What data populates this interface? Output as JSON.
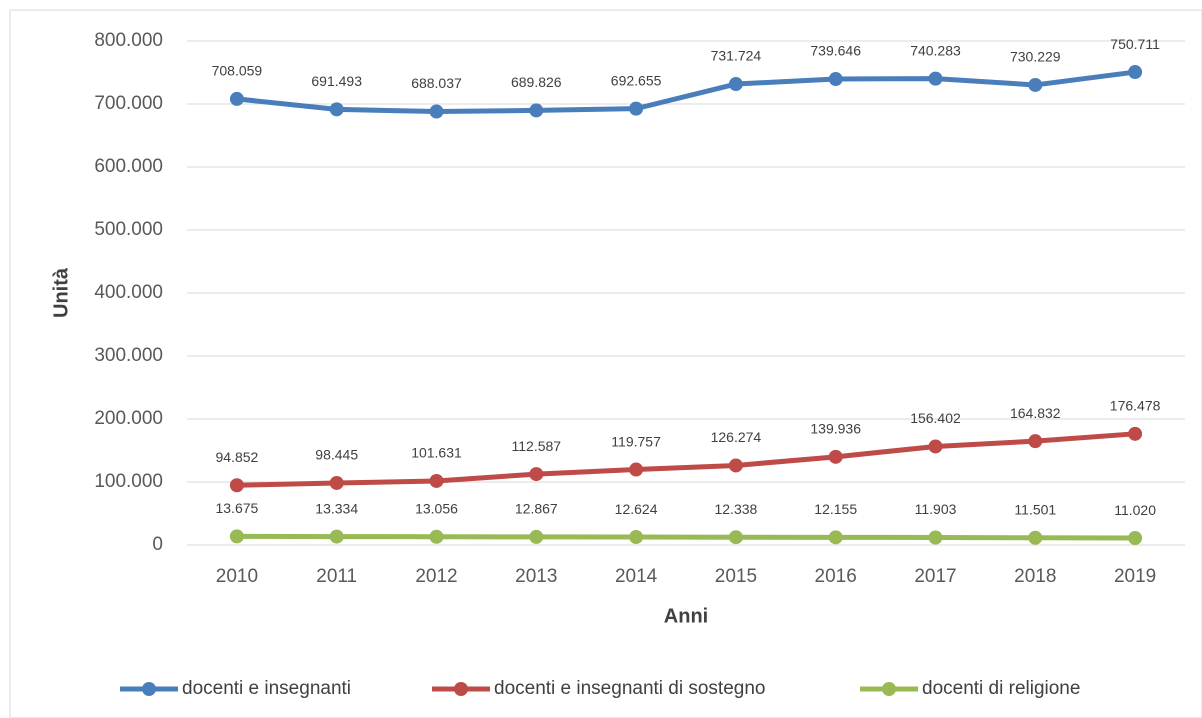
{
  "chart_data": {
    "type": "line",
    "x_label": "Anni",
    "y_label": "Unità",
    "categories": [
      "2010",
      "2011",
      "2012",
      "2013",
      "2014",
      "2015",
      "2016",
      "2017",
      "2018",
      "2019"
    ],
    "series": [
      {
        "name": "docenti e insegnanti",
        "color": "#4a7ebb",
        "values": [
          708059,
          691493,
          688037,
          689826,
          692655,
          731724,
          739646,
          740283,
          730229,
          750711
        ],
        "value_labels": [
          "708.059",
          "691.493",
          "688.037",
          "689.826",
          "692.655",
          "731.724",
          "739.646",
          "740.283",
          "730.229",
          "750.711"
        ]
      },
      {
        "name": "docenti e insegnanti di sostegno",
        "color": "#be4b48",
        "values": [
          94852,
          98445,
          101631,
          112587,
          119757,
          126274,
          139936,
          156402,
          164832,
          176478
        ],
        "value_labels": [
          "94.852",
          "98.445",
          "101.631",
          "112.587",
          "119.757",
          "126.274",
          "139.936",
          "156.402",
          "164.832",
          "176.478"
        ]
      },
      {
        "name": "docenti di religione",
        "color": "#98b954",
        "values": [
          13675,
          13334,
          13056,
          12867,
          12624,
          12338,
          12155,
          11903,
          11501,
          11020
        ],
        "value_labels": [
          "13.675",
          "13.334",
          "13.056",
          "12.867",
          "12.624",
          "12.338",
          "12.155",
          "11.903",
          "11.501",
          "11.020"
        ]
      }
    ],
    "ylim": [
      0,
      800000
    ],
    "yticks": [
      0,
      {
        "value": 100000,
        "label": "100.000"
      },
      {
        "value": 200000,
        "label": "200.000"
      },
      {
        "value": 300000,
        "label": "300.000"
      },
      {
        "value": 400000,
        "label": "400.000"
      },
      {
        "value": 500000,
        "label": "500.000"
      },
      {
        "value": 600000,
        "label": "600.000"
      },
      {
        "value": 700000,
        "label": "700.000"
      },
      {
        "value": 800000,
        "label": "800.000"
      }
    ],
    "grid": true,
    "legend": "bottom"
  }
}
